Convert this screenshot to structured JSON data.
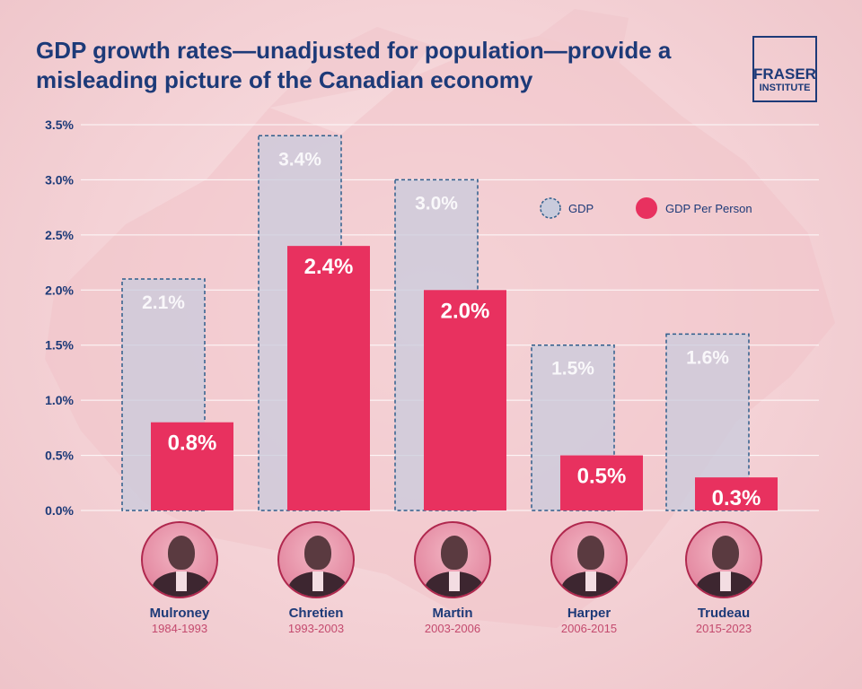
{
  "title": "GDP growth rates—unadjusted for population—provide a misleading picture of the Canadian economy",
  "logo": {
    "line1": "FRASER",
    "line2": "INSTITUTE"
  },
  "colors": {
    "gdp_fill": "#c9cbdc",
    "gdp_stroke": "#2f5e8c",
    "per_person_fill": "#e8315f",
    "axis_text": "#1d3a78",
    "grid": "#ffffff"
  },
  "chart_data": {
    "type": "bar",
    "title": "GDP growth rates—unadjusted for population—provide a misleading picture of the Canadian economy",
    "xlabel": "",
    "ylabel": "",
    "ylim": [
      0,
      3.5
    ],
    "yticks": [
      "0.0%",
      "0.5%",
      "1.0%",
      "1.5%",
      "2.0%",
      "2.5%",
      "3.0%",
      "3.5%"
    ],
    "categories": [
      "Mulroney",
      "Chretien",
      "Martin",
      "Harper",
      "Trudeau"
    ],
    "periods": [
      "1984-1993",
      "1993-2003",
      "2003-2006",
      "2006-2015",
      "2015-2023"
    ],
    "series": [
      {
        "name": "GDP",
        "values": [
          2.1,
          3.4,
          3.0,
          1.5,
          1.6
        ],
        "labels": [
          "2.1%",
          "3.4%",
          "3.0%",
          "1.5%",
          "1.6%"
        ]
      },
      {
        "name": "GDP Per Person",
        "values": [
          0.8,
          2.4,
          2.0,
          0.5,
          0.3
        ],
        "labels": [
          "0.8%",
          "2.4%",
          "2.0%",
          "0.5%",
          "0.3%"
        ]
      }
    ],
    "grid": true,
    "legend_position": "top-right"
  }
}
